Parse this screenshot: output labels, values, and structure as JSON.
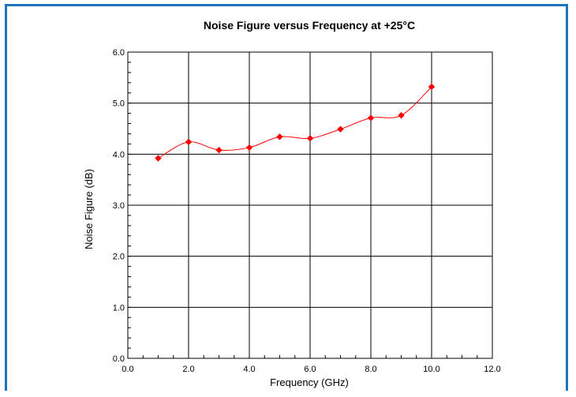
{
  "chart_data": {
    "type": "line",
    "title": "Noise Figure versus Frequency at +25°C",
    "xlabel": "Frequency (GHz)",
    "ylabel": "Noise Figure (dB)",
    "xlim": [
      0,
      12
    ],
    "ylim": [
      0,
      6
    ],
    "xticks": [
      "0.0",
      "2.0",
      "4.0",
      "6.0",
      "8.0",
      "10.0",
      "12.0"
    ],
    "yticks": [
      "0.0",
      "1.0",
      "2.0",
      "3.0",
      "4.0",
      "5.0",
      "6.0"
    ],
    "grid": true,
    "legend": "none",
    "series": [
      {
        "color": "#ff0000",
        "marker": "diamond",
        "x": [
          1,
          2,
          3,
          4,
          5,
          6,
          7,
          8,
          9,
          10
        ],
        "y": [
          3.92,
          4.24,
          4.08,
          4.13,
          4.34,
          4.31,
          4.49,
          4.71,
          4.76,
          5.32
        ]
      }
    ]
  },
  "frame": {
    "border_color": "#1e73be"
  }
}
